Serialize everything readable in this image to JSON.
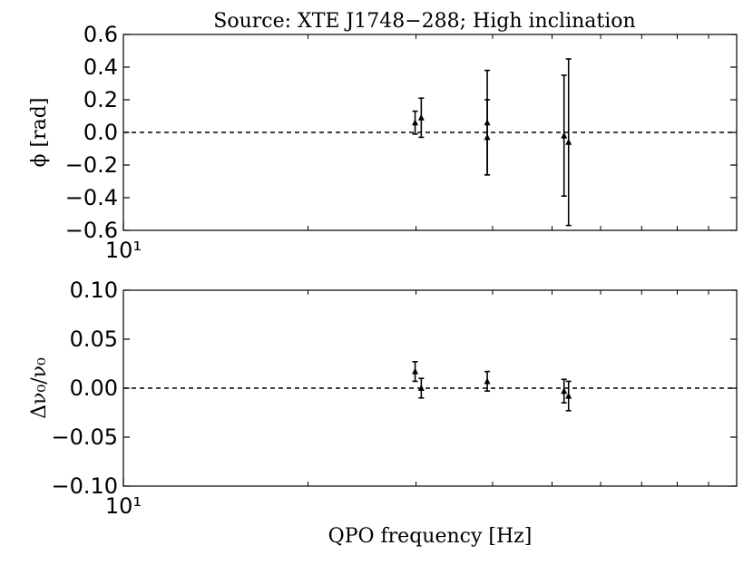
{
  "chart_data": [
    {
      "type": "scatter",
      "title": "Source: XTE J1748−288; High inclination",
      "xlabel": "",
      "ylabel": "ϕ [rad]",
      "xscale": "log",
      "x_tick_labels": [
        "10¹"
      ],
      "ylim": [
        -0.6,
        0.6
      ],
      "y_ticks": [
        0.6,
        0.4,
        0.2,
        0.0,
        -0.2,
        -0.4,
        -0.6
      ],
      "y_tick_labels": [
        "0.6",
        "0.4",
        "0.2",
        "0.0",
        "−0.2",
        "−0.4",
        "−0.6"
      ],
      "reference_line": 0.0,
      "points": [
        {
          "x": 29.9,
          "y": 0.06,
          "err": 0.07
        },
        {
          "x": 30.6,
          "y": 0.09,
          "err": 0.12
        },
        {
          "x": 39.2,
          "y": 0.06,
          "err": 0.32
        },
        {
          "x": 39.2,
          "y": -0.03,
          "err": 0.23
        },
        {
          "x": 52.3,
          "y": -0.02,
          "err": 0.37
        },
        {
          "x": 53.2,
          "y": -0.06,
          "err": 0.51
        }
      ]
    },
    {
      "type": "scatter",
      "title": "",
      "xlabel": "QPO frequency [Hz]",
      "ylabel": "Δν₀/ν₀",
      "xscale": "log",
      "x_tick_labels": [
        "10¹"
      ],
      "ylim": [
        -0.1,
        0.1
      ],
      "y_ticks": [
        0.1,
        0.05,
        0.0,
        -0.05,
        -0.1
      ],
      "y_tick_labels": [
        "0.10",
        "0.05",
        "0.00",
        "−0.05",
        "−0.10"
      ],
      "reference_line": 0.0,
      "points": [
        {
          "x": 29.9,
          "y": 0.017,
          "err": 0.01
        },
        {
          "x": 30.6,
          "y": 0.0,
          "err": 0.01
        },
        {
          "x": 39.2,
          "y": 0.007,
          "err": 0.01
        },
        {
          "x": 52.3,
          "y": -0.003,
          "err": 0.012
        },
        {
          "x": 53.2,
          "y": -0.008,
          "err": 0.015
        }
      ]
    }
  ]
}
